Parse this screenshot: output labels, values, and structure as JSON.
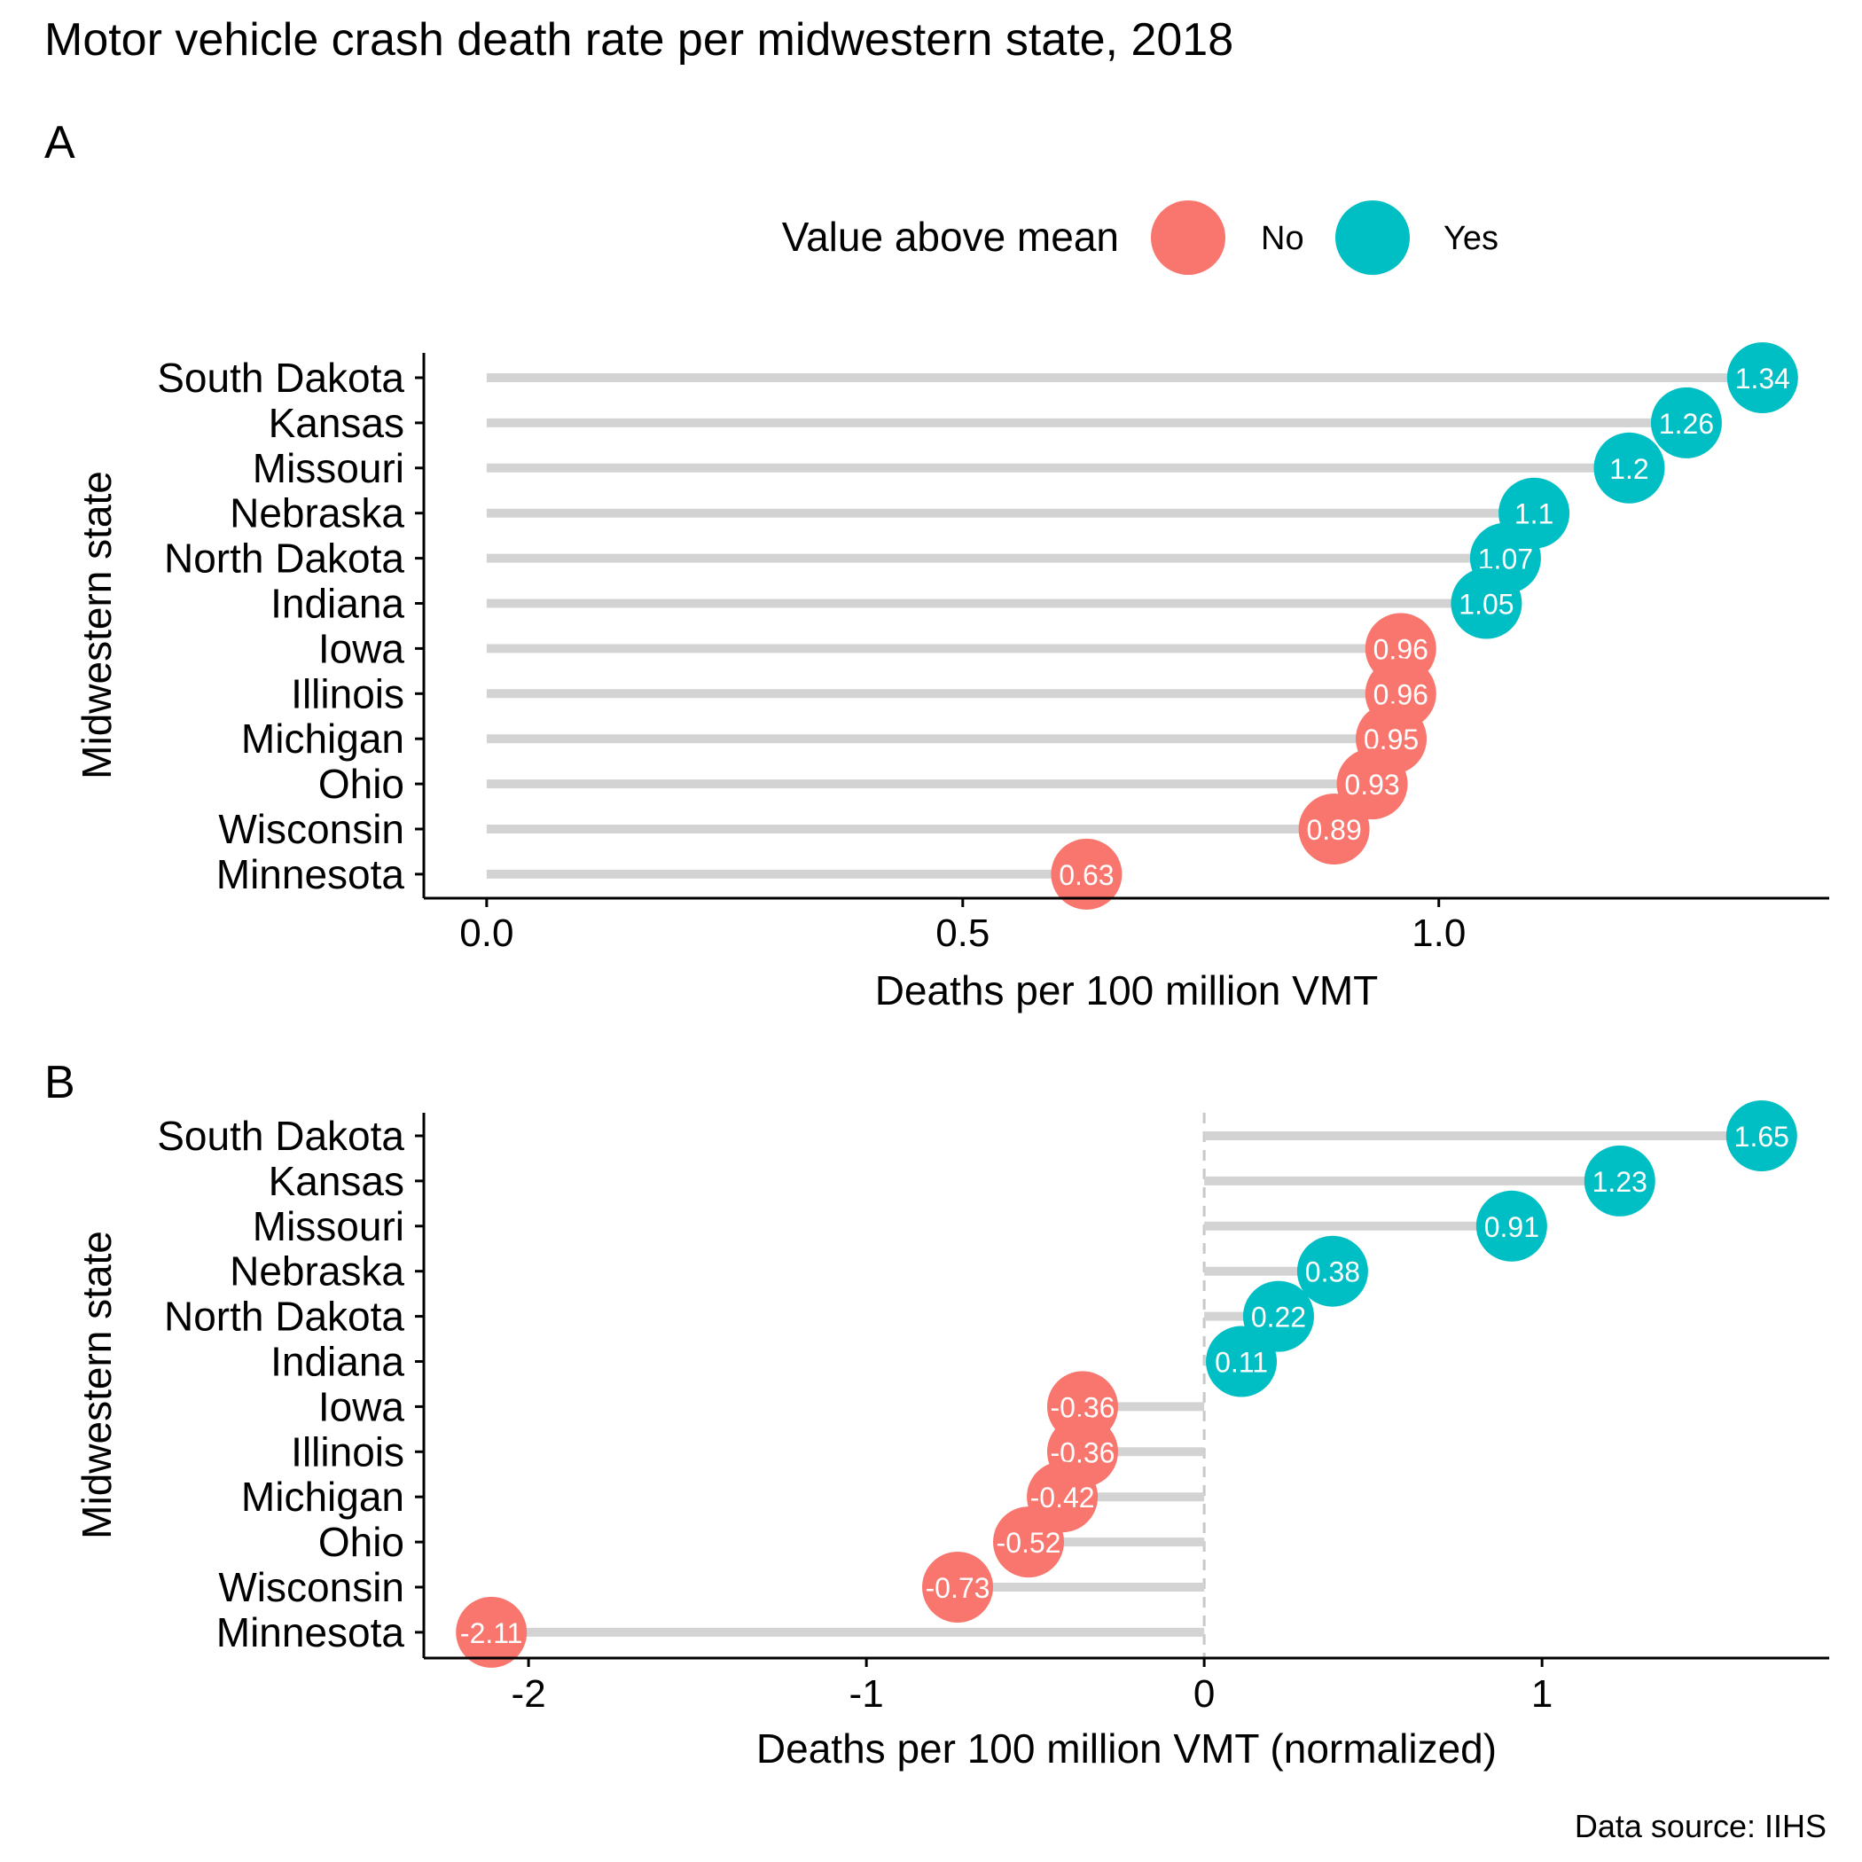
{
  "figure": {
    "title": "Motor vehicle crash death rate per midwestern state, 2018",
    "caption": "Data source: IIHS"
  },
  "legend": {
    "title": "Value above mean",
    "items": [
      {
        "label": "No",
        "color": "#F8766D"
      },
      {
        "label": "Yes",
        "color": "#00BFC4"
      }
    ],
    "placement": "top"
  },
  "chart_data": [
    {
      "panel": "A",
      "type": "lollipop",
      "orientation": "horizontal",
      "categories": [
        "South Dakota",
        "Kansas",
        "Missouri",
        "Nebraska",
        "North Dakota",
        "Indiana",
        "Iowa",
        "Illinois",
        "Michigan",
        "Ohio",
        "Wisconsin",
        "Minnesota"
      ],
      "values": [
        1.34,
        1.26,
        1.2,
        1.1,
        1.07,
        1.05,
        0.96,
        0.96,
        0.95,
        0.93,
        0.89,
        0.63
      ],
      "labels": [
        "1.34",
        "1.26",
        "1.2",
        "1.1",
        "1.07",
        "1.05",
        "0.96",
        "0.96",
        "0.95",
        "0.93",
        "0.89",
        "0.63"
      ],
      "above_mean": [
        "Yes",
        "Yes",
        "Yes",
        "Yes",
        "Yes",
        "Yes",
        "No",
        "No",
        "No",
        "No",
        "No",
        "No"
      ],
      "xlabel": "Deaths per 100 million VMT",
      "ylabel": "Midwestern state",
      "xticks": [
        0,
        0.5,
        1
      ],
      "xtick_labels": [
        "0.0",
        "0.5",
        "1.0"
      ],
      "xlim": [
        -0.066,
        1.41
      ],
      "grid": false
    },
    {
      "panel": "B",
      "type": "lollipop",
      "orientation": "horizontal",
      "categories": [
        "South Dakota",
        "Kansas",
        "Missouri",
        "Nebraska",
        "North Dakota",
        "Indiana",
        "Iowa",
        "Illinois",
        "Michigan",
        "Ohio",
        "Wisconsin",
        "Minnesota"
      ],
      "values": [
        1.65,
        1.23,
        0.91,
        0.38,
        0.22,
        0.11,
        -0.36,
        -0.36,
        -0.42,
        -0.52,
        -0.73,
        -2.11
      ],
      "labels": [
        "1.65",
        "1.23",
        "0.91",
        "0.38",
        "0.22",
        "0.11",
        "-0.36",
        "-0.36",
        "-0.42",
        "-0.52",
        "-0.73",
        "-2.11"
      ],
      "above_mean": [
        "Yes",
        "Yes",
        "Yes",
        "Yes",
        "Yes",
        "Yes",
        "No",
        "No",
        "No",
        "No",
        "No",
        "No"
      ],
      "xlabel": "Deaths per 100 million VMT (normalized)",
      "ylabel": "Midwestern state",
      "xticks": [
        -2,
        -1,
        0,
        1
      ],
      "xtick_labels": [
        "-2",
        "-1",
        "0",
        "1"
      ],
      "xlim": [
        -2.31,
        1.85
      ],
      "reference_line": 0,
      "grid": false
    }
  ]
}
